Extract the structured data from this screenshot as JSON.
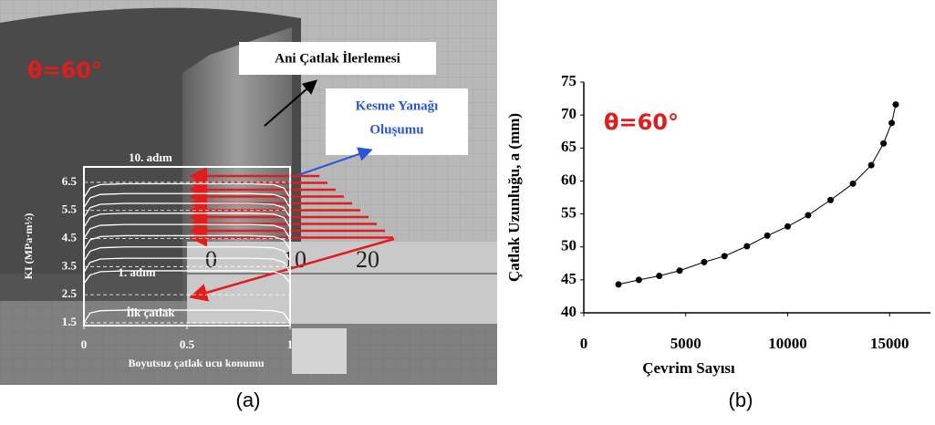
{
  "panel_a": {
    "theta": "θ=60°",
    "annotation_crack": "Ani Çatlak İlerlemesi",
    "annotation_shear": [
      "Kesme Yanağı",
      "Oluşumu"
    ],
    "ruler": [
      "0",
      "10",
      "20"
    ],
    "step_last": "10. adım",
    "step_first": "1. adım",
    "initial": "İlk çatlak"
  },
  "panel_labels": [
    "(a)",
    "(b)"
  ],
  "chart_data": [
    {
      "type": "line",
      "ylabel": "KI (MPa·m½)",
      "xlabel": "Boyutsuz çatlak ucu konumu",
      "x": [
        0,
        0.03,
        0.08,
        0.2,
        0.5,
        0.8,
        0.92,
        0.97,
        1
      ],
      "xlim": [
        0,
        1
      ],
      "xticks": [
        0,
        0.5,
        1
      ],
      "ylim": [
        1.4,
        7.05
      ],
      "yticks": [
        1.5,
        2.5,
        3.5,
        4.5,
        5.5,
        6.5
      ],
      "grid": true,
      "series": [
        {
          "color": "#ffffff",
          "values": [
            1.5,
            1.85,
            1.93,
            1.95,
            1.95,
            1.95,
            1.93,
            1.85,
            1.5
          ]
        },
        {
          "color": "#ffffff",
          "values": [
            2.9,
            3.2,
            3.32,
            3.35,
            3.35,
            3.35,
            3.32,
            3.2,
            2.9
          ]
        },
        {
          "color": "#ffffff",
          "values": [
            3.3,
            3.65,
            3.77,
            3.8,
            3.8,
            3.8,
            3.77,
            3.65,
            3.3
          ]
        },
        {
          "color": "#ffffff",
          "values": [
            3.7,
            4.05,
            4.17,
            4.2,
            4.2,
            4.2,
            4.17,
            4.05,
            3.7
          ]
        },
        {
          "color": "#ffffff",
          "values": [
            4.1,
            4.45,
            4.57,
            4.6,
            4.6,
            4.6,
            4.57,
            4.45,
            4.1
          ]
        },
        {
          "color": "#ffffff",
          "values": [
            4.5,
            4.85,
            4.97,
            5.0,
            5.0,
            5.0,
            4.97,
            4.85,
            4.5
          ]
        },
        {
          "color": "#ffffff",
          "values": [
            4.9,
            5.25,
            5.37,
            5.4,
            5.4,
            5.4,
            5.37,
            5.25,
            4.9
          ]
        },
        {
          "color": "#ffffff",
          "values": [
            5.25,
            5.6,
            5.72,
            5.75,
            5.75,
            5.75,
            5.72,
            5.6,
            5.25
          ]
        },
        {
          "color": "#ffffff",
          "values": [
            5.6,
            5.95,
            6.07,
            6.1,
            6.1,
            6.1,
            6.07,
            5.95,
            5.6
          ]
        },
        {
          "color": "#ffffff",
          "values": [
            5.95,
            6.3,
            6.42,
            6.45,
            6.45,
            6.45,
            6.42,
            6.3,
            5.95
          ]
        }
      ]
    },
    {
      "type": "scatter",
      "ylabel": "Çatlak Uzunluğu, a (mm)",
      "xlabel": "Çevrim Sayısı",
      "annotation": "θ=60°",
      "x": [
        1700,
        2700,
        3700,
        4700,
        5900,
        6900,
        8000,
        9000,
        10000,
        11000,
        12100,
        13200,
        14100,
        14700,
        15100,
        15300
      ],
      "values": [
        44.3,
        45.0,
        45.6,
        46.4,
        47.7,
        48.6,
        50.1,
        51.7,
        53.1,
        54.8,
        57.1,
        59.6,
        62.4,
        65.7,
        68.8,
        71.6
      ],
      "color": "#000000",
      "connect": true,
      "xlim": [
        0,
        17000
      ],
      "xticks": [
        0,
        5000,
        10000,
        15000
      ],
      "ylim": [
        40,
        75
      ],
      "yticks": [
        40,
        45,
        50,
        55,
        60,
        65,
        70,
        75
      ]
    }
  ]
}
